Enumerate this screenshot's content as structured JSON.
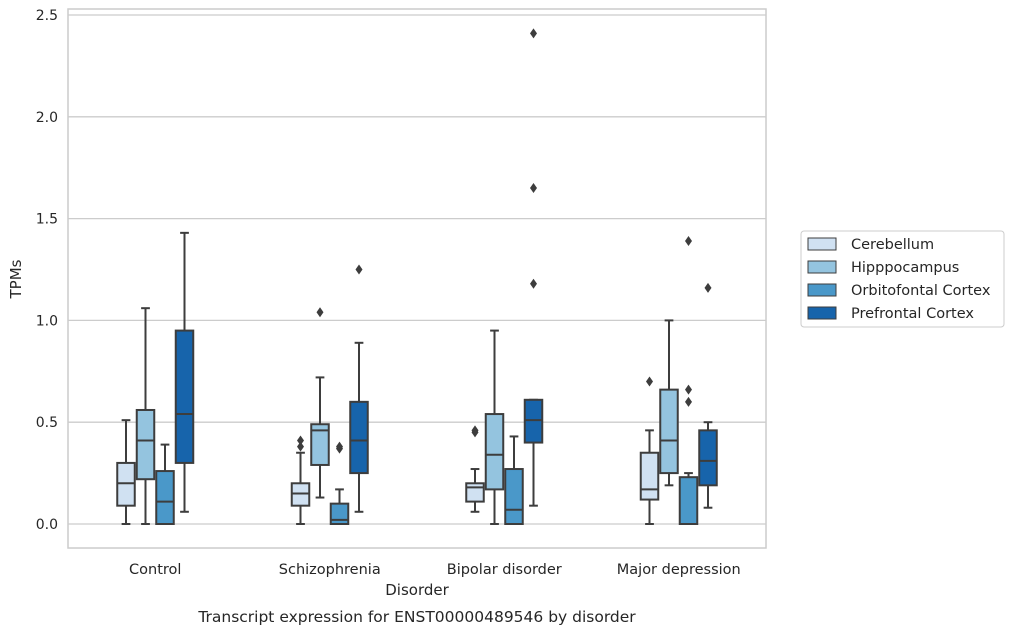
{
  "chart_data": {
    "type": "boxplot",
    "title": "",
    "caption": "Transcript expression for ENST00000489546 by disorder",
    "xlabel": "Disorder",
    "ylabel": "TPMs",
    "ylim": [
      -0.12,
      2.54
    ],
    "yticks": [
      0.0,
      0.5,
      1.0,
      1.5,
      2.0,
      2.5
    ],
    "ytick_labels": [
      "0.0",
      "0.5",
      "1.0",
      "1.5",
      "2.0",
      "2.5"
    ],
    "grid": "horizontal",
    "legend_position": "right",
    "categories": [
      "Control",
      "Schizophrenia",
      "Bipolar disorder",
      "Major depression"
    ],
    "series": [
      {
        "name": "Cerebellum",
        "color": "#d0e1f2",
        "boxes": [
          {
            "whislo": 0.0,
            "q1": 0.09,
            "med": 0.2,
            "q3": 0.3,
            "whishi": 0.51,
            "fliers": []
          },
          {
            "whislo": 0.0,
            "q1": 0.09,
            "med": 0.15,
            "q3": 0.2,
            "whishi": 0.35,
            "fliers": [
              0.38,
              0.41
            ]
          },
          {
            "whislo": 0.06,
            "q1": 0.11,
            "med": 0.18,
            "q3": 0.2,
            "whishi": 0.27,
            "fliers": [
              0.45,
              0.46
            ]
          },
          {
            "whislo": 0.0,
            "q1": 0.12,
            "med": 0.17,
            "q3": 0.35,
            "whishi": 0.46,
            "fliers": [
              0.7
            ]
          }
        ]
      },
      {
        "name": "Hipppocampus",
        "color": "#94c4df",
        "boxes": [
          {
            "whislo": 0.0,
            "q1": 0.22,
            "med": 0.41,
            "q3": 0.56,
            "whishi": 1.06,
            "fliers": []
          },
          {
            "whislo": 0.13,
            "q1": 0.29,
            "med": 0.46,
            "q3": 0.49,
            "whishi": 0.72,
            "fliers": [
              1.04
            ]
          },
          {
            "whislo": 0.0,
            "q1": 0.17,
            "med": 0.34,
            "q3": 0.54,
            "whishi": 0.95,
            "fliers": []
          },
          {
            "whislo": 0.19,
            "q1": 0.25,
            "med": 0.41,
            "q3": 0.66,
            "whishi": 1.0,
            "fliers": []
          }
        ]
      },
      {
        "name": "Orbitofontal Cortex",
        "color": "#4a98c9",
        "boxes": [
          {
            "whislo": 0.0,
            "q1": 0.0,
            "med": 0.11,
            "q3": 0.26,
            "whishi": 0.39,
            "fliers": []
          },
          {
            "whislo": 0.0,
            "q1": 0.0,
            "med": 0.02,
            "q3": 0.1,
            "whishi": 0.17,
            "fliers": [
              0.37,
              0.38
            ]
          },
          {
            "whislo": 0.0,
            "q1": 0.0,
            "med": 0.07,
            "q3": 0.27,
            "whishi": 0.43,
            "fliers": []
          },
          {
            "whislo": 0.0,
            "q1": 0.0,
            "med": 0.0,
            "q3": 0.23,
            "whishi": 0.25,
            "fliers": [
              0.6,
              0.66,
              1.39
            ]
          }
        ]
      },
      {
        "name": "Prefrontal Cortex",
        "color": "#1764ab",
        "boxes": [
          {
            "whislo": 0.06,
            "q1": 0.3,
            "med": 0.54,
            "q3": 0.95,
            "whishi": 1.43,
            "fliers": []
          },
          {
            "whislo": 0.06,
            "q1": 0.25,
            "med": 0.41,
            "q3": 0.6,
            "whishi": 0.89,
            "fliers": [
              1.25
            ]
          },
          {
            "whislo": 0.09,
            "q1": 0.4,
            "med": 0.51,
            "q3": 0.61,
            "whishi": 0.61,
            "fliers": [
              1.18,
              1.65,
              2.41
            ]
          },
          {
            "whislo": 0.08,
            "q1": 0.19,
            "med": 0.31,
            "q3": 0.46,
            "whishi": 0.5,
            "fliers": [
              1.16
            ]
          }
        ]
      }
    ]
  }
}
